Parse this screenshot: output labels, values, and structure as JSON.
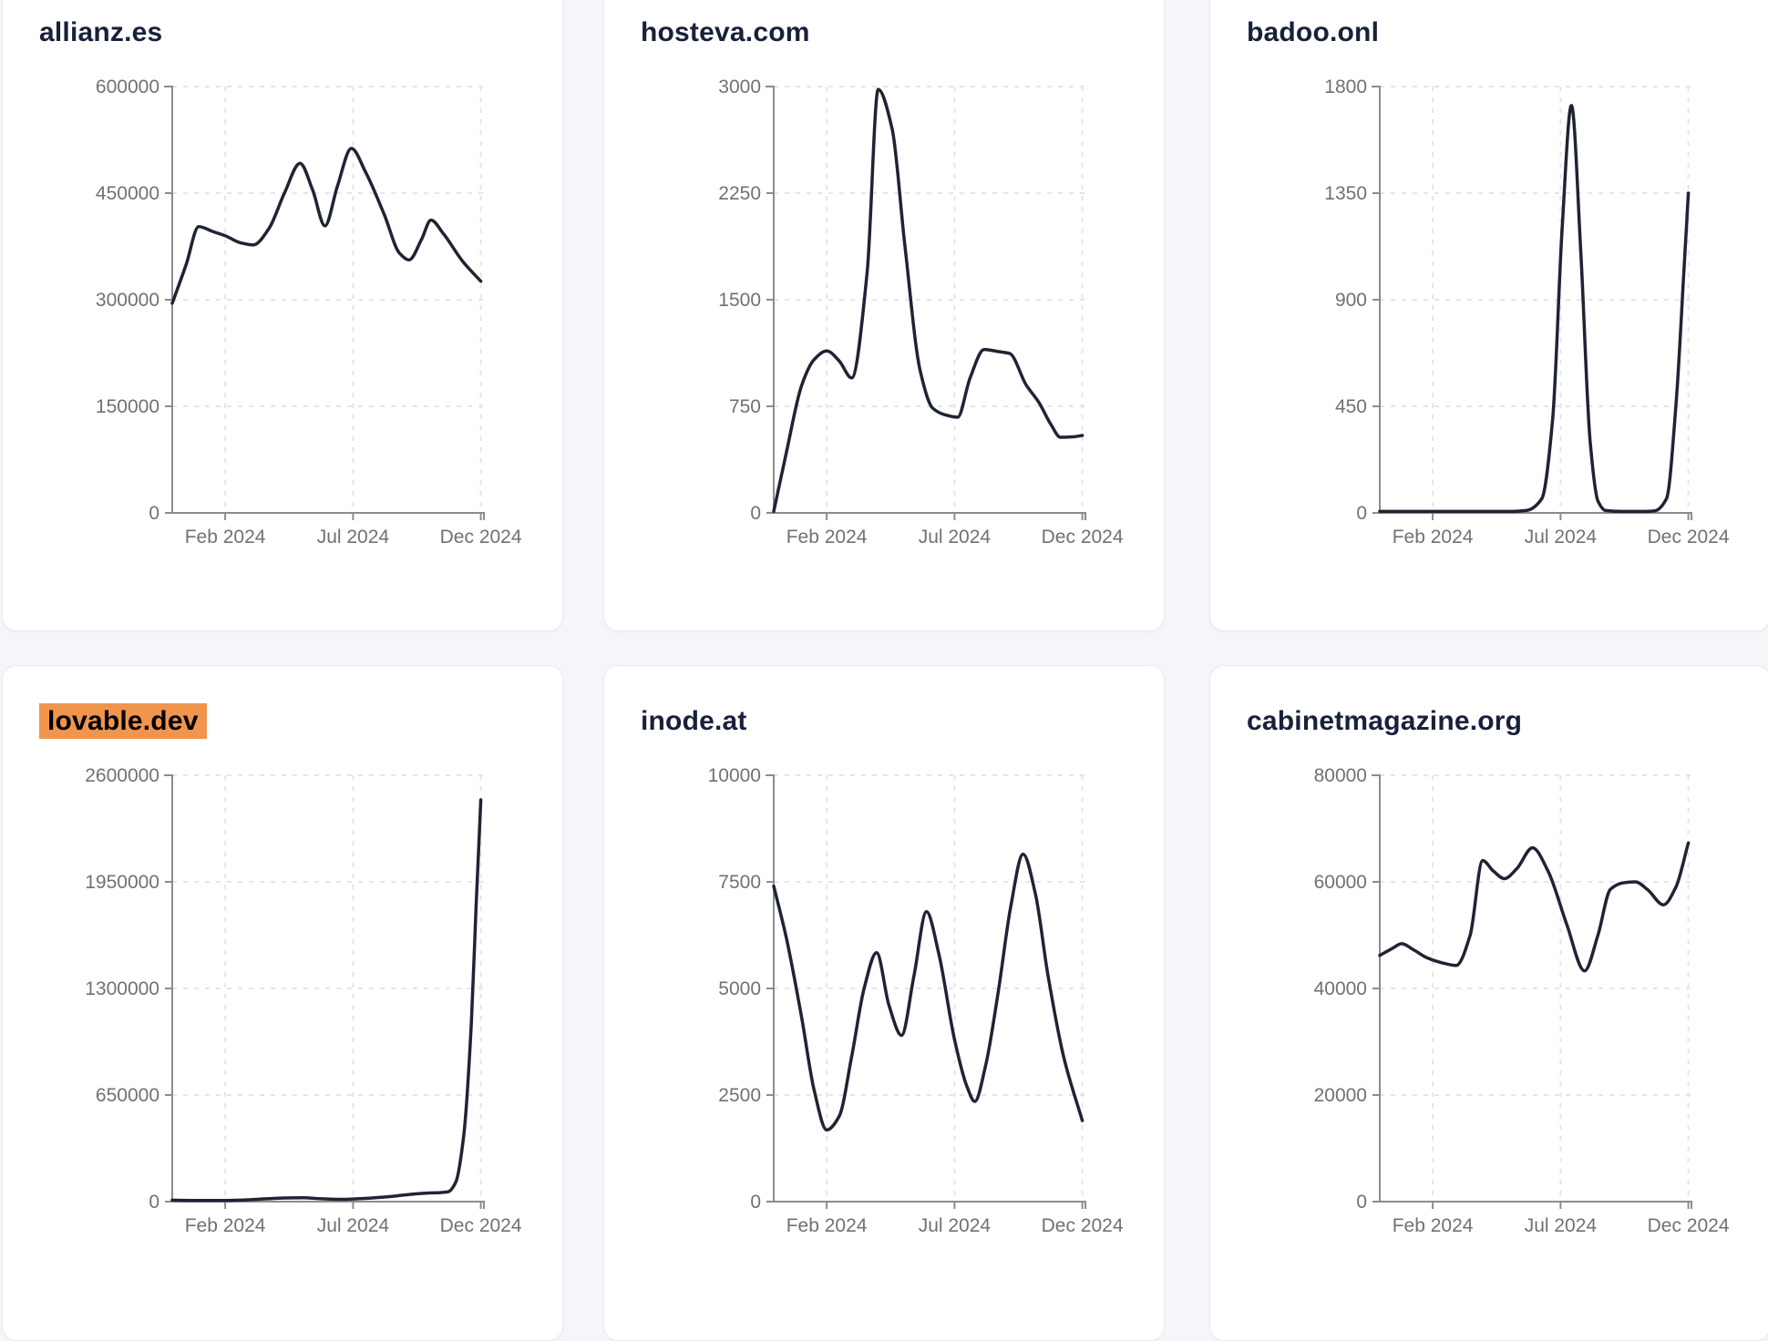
{
  "colors": {
    "page_bg": "#f4f6f9",
    "card_bg": "#ffffff",
    "card_border": "#e9ebef",
    "title_text": "#18203a",
    "line": "#1e2433",
    "axis": "#8a8c90",
    "grid": "#e4e5e9",
    "tick_label": "#6f7175",
    "highlight_bg": "#f0954e",
    "highlight_text": "#000000"
  },
  "chart_data": [
    {
      "type": "line",
      "title": "allianz.es",
      "highlighted": false,
      "ylim": [
        0,
        600000
      ],
      "yticks": [
        0,
        150000,
        300000,
        450000,
        600000
      ],
      "x_tick_labels": [
        "Feb 2024",
        "Jul 2024",
        "Dec 2024"
      ],
      "x_tick_positions": [
        0.17,
        0.58,
        0.99
      ],
      "grid": true,
      "series": [
        [
          0.0,
          295000
        ],
        [
          0.045,
          350000
        ],
        [
          0.085,
          403000
        ],
        [
          0.13,
          396000
        ],
        [
          0.17,
          390000
        ],
        [
          0.22,
          380000
        ],
        [
          0.26,
          377000
        ],
        [
          0.31,
          400000
        ],
        [
          0.36,
          450000
        ],
        [
          0.41,
          492000
        ],
        [
          0.45,
          455000
        ],
        [
          0.49,
          404000
        ],
        [
          0.53,
          460000
        ],
        [
          0.575,
          513000
        ],
        [
          0.62,
          480000
        ],
        [
          0.68,
          420000
        ],
        [
          0.73,
          365000
        ],
        [
          0.76,
          356000
        ],
        [
          0.8,
          385000
        ],
        [
          0.83,
          412000
        ],
        [
          0.87,
          393000
        ],
        [
          0.93,
          355000
        ],
        [
          0.99,
          326000
        ]
      ]
    },
    {
      "type": "line",
      "title": "hosteva.com",
      "highlighted": false,
      "ylim": [
        0,
        3000
      ],
      "yticks": [
        0,
        750,
        1500,
        2250,
        3000
      ],
      "x_tick_labels": [
        "Feb 2024",
        "Jul 2024",
        "Dec 2024"
      ],
      "x_tick_positions": [
        0.17,
        0.58,
        0.99
      ],
      "grid": true,
      "series": [
        [
          0.0,
          10
        ],
        [
          0.04,
          420
        ],
        [
          0.09,
          900
        ],
        [
          0.13,
          1080
        ],
        [
          0.17,
          1140
        ],
        [
          0.21,
          1070
        ],
        [
          0.25,
          950
        ],
        [
          0.3,
          1700
        ],
        [
          0.335,
          2980
        ],
        [
          0.38,
          2700
        ],
        [
          0.42,
          1900
        ],
        [
          0.47,
          1000
        ],
        [
          0.51,
          737
        ],
        [
          0.55,
          690
        ],
        [
          0.59,
          673
        ],
        [
          0.63,
          950
        ],
        [
          0.675,
          1150
        ],
        [
          0.72,
          1135
        ],
        [
          0.757,
          1122
        ],
        [
          0.81,
          900
        ],
        [
          0.85,
          780
        ],
        [
          0.89,
          620
        ],
        [
          0.92,
          532
        ],
        [
          0.96,
          535
        ],
        [
          0.99,
          545
        ]
      ]
    },
    {
      "type": "line",
      "title": "badoo.onl",
      "highlighted": false,
      "ylim": [
        0,
        1800
      ],
      "yticks": [
        0,
        450,
        900,
        1350,
        1800
      ],
      "x_tick_labels": [
        "Feb 2024",
        "Jul 2024",
        "Dec 2024"
      ],
      "x_tick_positions": [
        0.17,
        0.58,
        0.99
      ],
      "grid": true,
      "series": [
        [
          0.0,
          6
        ],
        [
          0.08,
          6
        ],
        [
          0.17,
          6
        ],
        [
          0.26,
          6
        ],
        [
          0.35,
          6
        ],
        [
          0.42,
          6
        ],
        [
          0.47,
          10
        ],
        [
          0.52,
          60
        ],
        [
          0.555,
          400
        ],
        [
          0.585,
          1200
        ],
        [
          0.615,
          1720
        ],
        [
          0.645,
          1100
        ],
        [
          0.675,
          300
        ],
        [
          0.7,
          50
        ],
        [
          0.725,
          10
        ],
        [
          0.78,
          6
        ],
        [
          0.84,
          6
        ],
        [
          0.88,
          8
        ],
        [
          0.92,
          60
        ],
        [
          0.95,
          450
        ],
        [
          0.975,
          1000
        ],
        [
          0.99,
          1350
        ]
      ]
    },
    {
      "type": "line",
      "title": "lovable.dev",
      "highlighted": true,
      "ylim": [
        0,
        2600000
      ],
      "yticks": [
        0,
        650000,
        1300000,
        1950000,
        2600000
      ],
      "x_tick_labels": [
        "Feb 2024",
        "Jul 2024",
        "Dec 2024"
      ],
      "x_tick_positions": [
        0.17,
        0.58,
        0.99
      ],
      "grid": true,
      "series": [
        [
          0.0,
          9000
        ],
        [
          0.06,
          7000
        ],
        [
          0.12,
          6500
        ],
        [
          0.17,
          7000
        ],
        [
          0.23,
          10000
        ],
        [
          0.3,
          17000
        ],
        [
          0.36,
          22000
        ],
        [
          0.42,
          24000
        ],
        [
          0.48,
          17000
        ],
        [
          0.54,
          14000
        ],
        [
          0.6,
          18000
        ],
        [
          0.66,
          25000
        ],
        [
          0.72,
          35000
        ],
        [
          0.78,
          47000
        ],
        [
          0.82,
          52000
        ],
        [
          0.86,
          55000
        ],
        [
          0.885,
          60000
        ],
        [
          0.91,
          120000
        ],
        [
          0.935,
          400000
        ],
        [
          0.96,
          1100000
        ],
        [
          0.975,
          1800000
        ],
        [
          0.99,
          2450000
        ]
      ]
    },
    {
      "type": "line",
      "title": "inode.at",
      "highlighted": false,
      "ylim": [
        0,
        10000
      ],
      "yticks": [
        0,
        2500,
        5000,
        7500,
        10000
      ],
      "x_tick_labels": [
        "Feb 2024",
        "Jul 2024",
        "Dec 2024"
      ],
      "x_tick_positions": [
        0.17,
        0.58,
        0.99
      ],
      "grid": true,
      "series": [
        [
          0.0,
          7400
        ],
        [
          0.04,
          6200
        ],
        [
          0.09,
          4300
        ],
        [
          0.13,
          2600
        ],
        [
          0.17,
          1680
        ],
        [
          0.21,
          2000
        ],
        [
          0.25,
          3400
        ],
        [
          0.29,
          5000
        ],
        [
          0.33,
          5840
        ],
        [
          0.37,
          4600
        ],
        [
          0.41,
          3900
        ],
        [
          0.45,
          5300
        ],
        [
          0.49,
          6800
        ],
        [
          0.53,
          5800
        ],
        [
          0.58,
          3800
        ],
        [
          0.62,
          2700
        ],
        [
          0.645,
          2350
        ],
        [
          0.68,
          3200
        ],
        [
          0.72,
          4900
        ],
        [
          0.76,
          6900
        ],
        [
          0.8,
          8150
        ],
        [
          0.84,
          7200
        ],
        [
          0.88,
          5300
        ],
        [
          0.93,
          3400
        ],
        [
          0.99,
          1900
        ]
      ]
    },
    {
      "type": "line",
      "title": "cabinetmagazine.org",
      "highlighted": false,
      "ylim": [
        0,
        80000
      ],
      "yticks": [
        0,
        20000,
        40000,
        60000,
        80000
      ],
      "x_tick_labels": [
        "Feb 2024",
        "Jul 2024",
        "Dec 2024"
      ],
      "x_tick_positions": [
        0.17,
        0.58,
        0.99
      ],
      "grid": true,
      "series": [
        [
          0.0,
          46200
        ],
        [
          0.04,
          47500
        ],
        [
          0.07,
          48400
        ],
        [
          0.11,
          47200
        ],
        [
          0.15,
          45800
        ],
        [
          0.2,
          44800
        ],
        [
          0.245,
          44300
        ],
        [
          0.29,
          50000
        ],
        [
          0.33,
          64000
        ],
        [
          0.365,
          62000
        ],
        [
          0.4,
          60600
        ],
        [
          0.44,
          62500
        ],
        [
          0.49,
          66400
        ],
        [
          0.54,
          62000
        ],
        [
          0.6,
          52000
        ],
        [
          0.657,
          43300
        ],
        [
          0.7,
          50000
        ],
        [
          0.74,
          58600
        ],
        [
          0.78,
          59800
        ],
        [
          0.82,
          60000
        ],
        [
          0.86,
          58500
        ],
        [
          0.91,
          55700
        ],
        [
          0.95,
          59000
        ],
        [
          0.99,
          67300
        ]
      ]
    }
  ]
}
